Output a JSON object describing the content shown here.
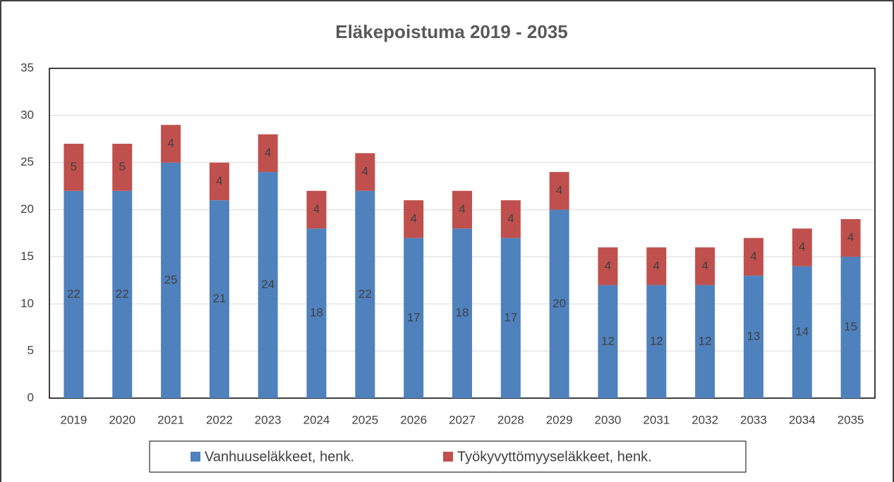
{
  "chart_data": {
    "type": "stacked_bar",
    "title": "Eläkepoistuma 2019 - 2035",
    "categories": [
      "2019",
      "2020",
      "2021",
      "2022",
      "2023",
      "2024",
      "2025",
      "2026",
      "2027",
      "2028",
      "2029",
      "2030",
      "2031",
      "2032",
      "2033",
      "2034",
      "2035"
    ],
    "series": [
      {
        "name": "Vanhuuseläkkeet, henk.",
        "color": "#4f81bd",
        "values": [
          22,
          22,
          25,
          21,
          24,
          18,
          22,
          17,
          18,
          17,
          20,
          12,
          12,
          12,
          13,
          14,
          15
        ]
      },
      {
        "name": "Työkyvyttömyyseläkkeet, henk.",
        "color": "#c0504d",
        "values": [
          5,
          5,
          4,
          4,
          4,
          4,
          4,
          4,
          4,
          4,
          4,
          4,
          4,
          4,
          4,
          4,
          4
        ]
      }
    ],
    "ylim": [
      0,
      35
    ],
    "yticks": [
      0,
      5,
      10,
      15,
      20,
      25,
      30,
      35
    ],
    "grid": true,
    "legend": "bottom"
  }
}
